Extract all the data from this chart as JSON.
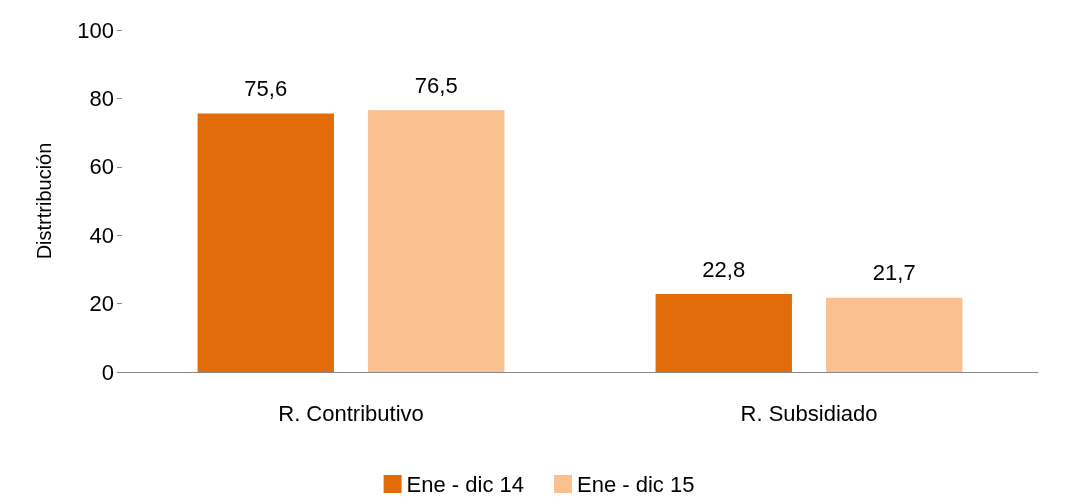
{
  "chart_data": {
    "type": "bar",
    "ylabel": "Distrtribución",
    "categories": [
      "R. Contributivo",
      "R. Subsidiado"
    ],
    "series": [
      {
        "name": "Ene - dic 14",
        "color": "#e36c0a",
        "values": [
          75.6,
          22.8
        ],
        "value_labels": [
          "75,6",
          "22,8"
        ]
      },
      {
        "name": "Ene - dic 15",
        "color": "#fac090",
        "values": [
          76.5,
          21.7
        ],
        "value_labels": [
          "76,5",
          "21,7"
        ]
      }
    ],
    "ylim": [
      0,
      100
    ],
    "yticks": [
      0,
      20,
      40,
      60,
      80,
      100
    ],
    "grid": false,
    "legend": "bottom"
  }
}
